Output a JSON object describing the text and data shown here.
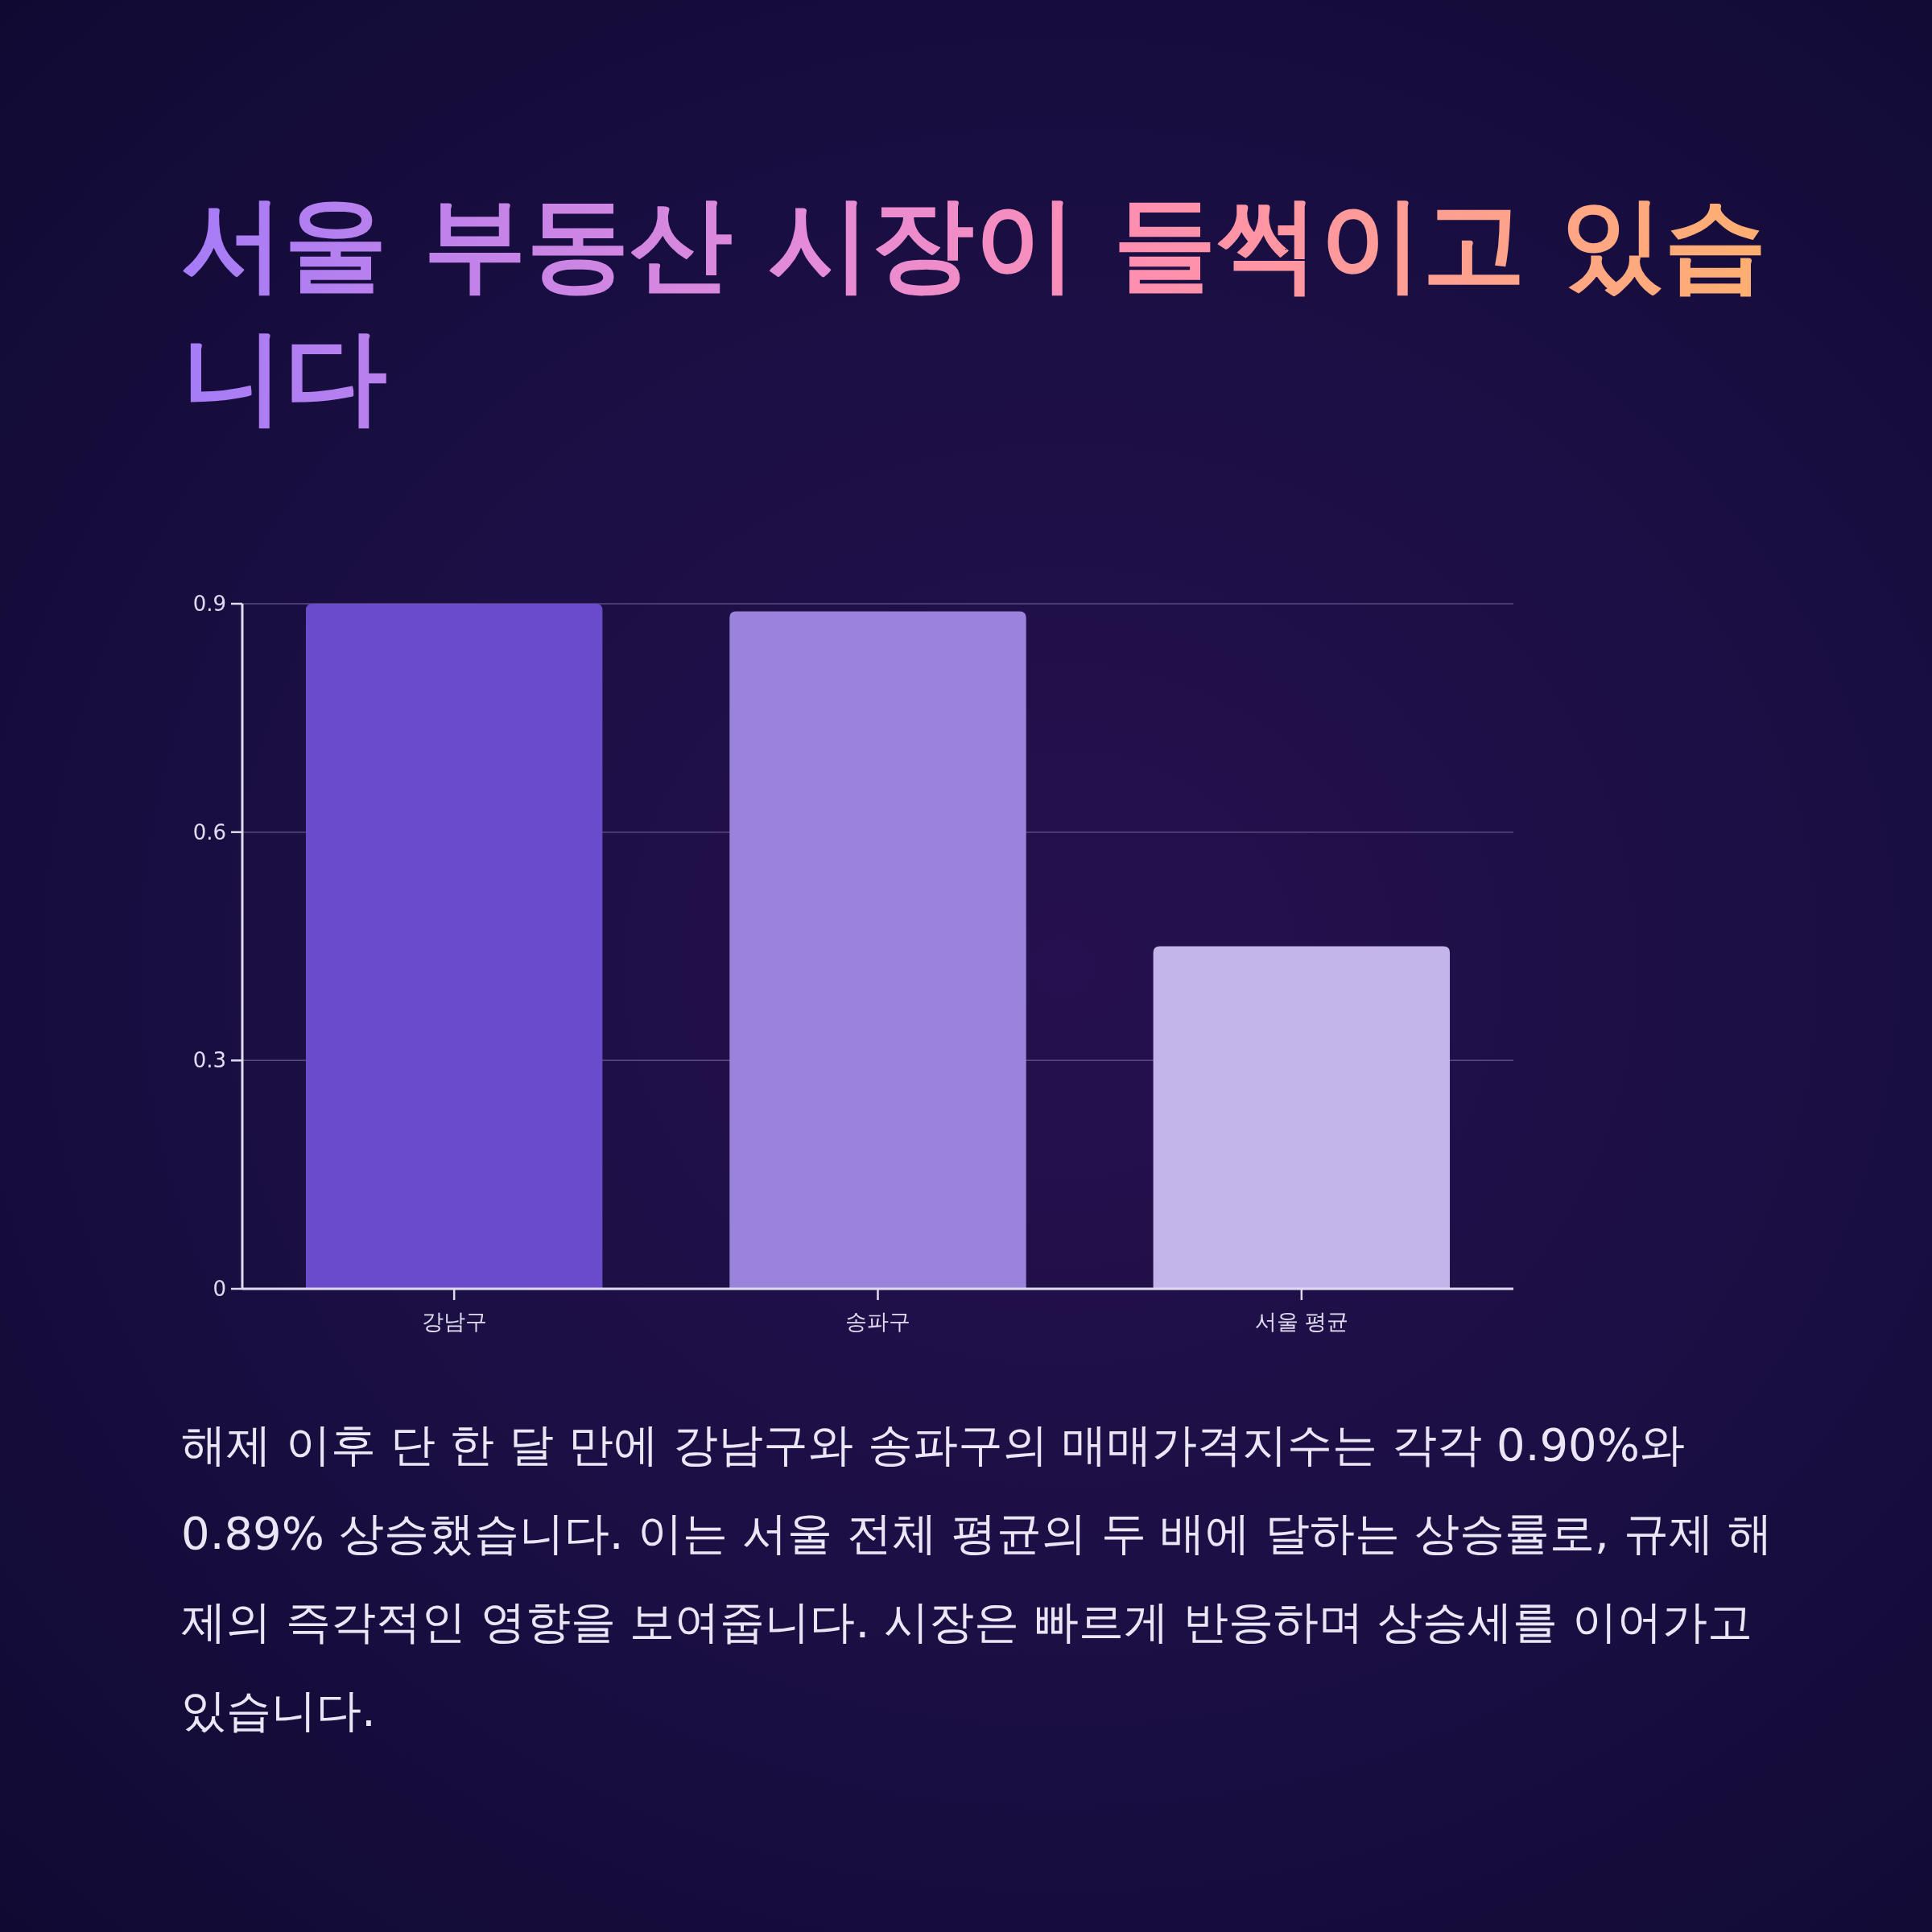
{
  "chart_data": {
    "type": "bar",
    "title": "서울 부동산 시장이 들썩이고 있습니다",
    "categories": [
      "강남구",
      "송파구",
      "서울 평균"
    ],
    "values": [
      0.9,
      0.89,
      0.45
    ],
    "colors": [
      "#6a4bc9",
      "#9a84db",
      "#c3b5ea"
    ],
    "ylim": [
      0,
      0.9
    ],
    "yticks": [
      0,
      0.3,
      0.6,
      0.9
    ],
    "grid": "y",
    "annotations": [
      "해제 이후 단 한 달 만에 강남구와 송파구의 매매가격지수는 각각 0.90%와 0.89% 상승했습니다. 이는 서울 전체 평균의 두 배에 달하는 상승률로, 규제 해제의 즉각적인 영향을 보여줍니다. 시장은 빠르게 반응하며 상승세를 이어가고 있습니다."
    ]
  }
}
